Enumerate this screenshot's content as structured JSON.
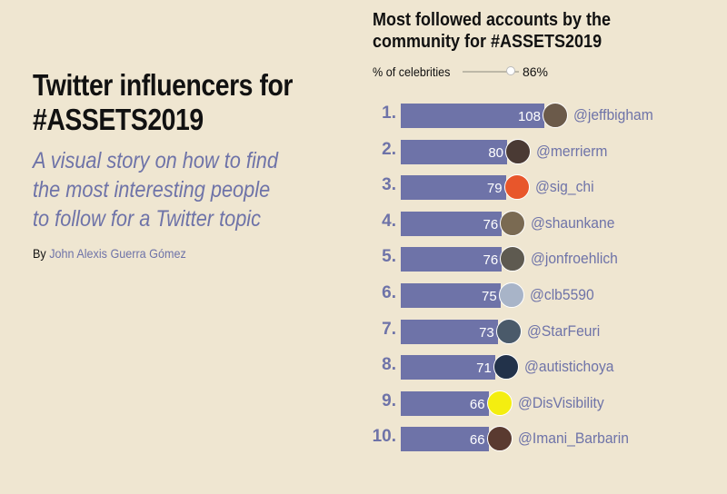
{
  "intro": {
    "title_line1": "Twitter influencers for",
    "title_line2": "#ASSETS2019",
    "subtitle_line1": "A visual story on how to find",
    "subtitle_line2": "the most interesting people",
    "subtitle_line3": "to follow for a Twitter topic",
    "byline_prefix": "By",
    "author": "John Alexis Guerra Gómez"
  },
  "chart_header": {
    "title_line1": "Most followed accounts by the",
    "title_line2": "community for #ASSETS2019",
    "slider_label": "% of celebrities",
    "slider_value_label": "86%",
    "slider_fraction": 0.86
  },
  "chart_data": {
    "type": "bar",
    "orientation": "horizontal",
    "title": "Most followed accounts by the community for #ASSETS2019",
    "max": 108,
    "ranks": [
      "1.",
      "2.",
      "3.",
      "4.",
      "5.",
      "6.",
      "7.",
      "8.",
      "9.",
      "10."
    ],
    "categories": [
      "@jeffbigham",
      "@merrierm",
      "@sig_chi",
      "@shaunkane",
      "@jonfroehlich",
      "@clb5590",
      "@StarFeuri",
      "@autistichoya",
      "@DisVisibility",
      "@Imani_Barbarin"
    ],
    "values": [
      108,
      80,
      79,
      76,
      76,
      75,
      73,
      71,
      66,
      66
    ],
    "avatar_colors": [
      "#6b5a4a",
      "#4a3a34",
      "#e8562b",
      "#7a6a52",
      "#5e5a50",
      "#a8b4c8",
      "#4a5a6a",
      "#22324a",
      "#f4ee10",
      "#5a3a30"
    ],
    "bar_color": "#6e73a8"
  }
}
